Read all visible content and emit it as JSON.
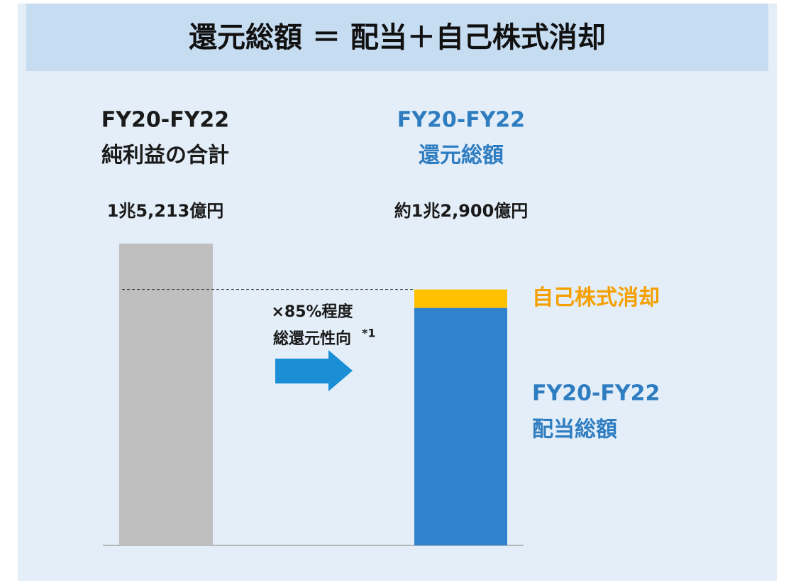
{
  "chart_data": {
    "type": "bar",
    "title": "還元総額 ＝ 配当＋自己株式消却",
    "ylim": [
      0,
      16000
    ],
    "bars": [
      {
        "label": [
          "FY20-FY22",
          "純利益の合計"
        ],
        "value": 15213,
        "value_label": "1兆5,213億円",
        "color": "#bfbfbf",
        "label_color": "#1a1a1a"
      },
      {
        "label": [
          "FY20-FY22",
          "還元総額"
        ],
        "value": 12900,
        "value_label": "約1兆2,900億円",
        "label_color": "#2f7dc1",
        "segments": [
          {
            "name": [
              "FY20-FY22",
              "配当総額"
            ],
            "value": 11970,
            "color": "#3182ce",
            "label_color": "#2f7dc1"
          },
          {
            "name": [
              "自己株式消却"
            ],
            "value": 930,
            "color": "#ffc000",
            "label_color": "#f5a000"
          }
        ]
      }
    ],
    "annotation": {
      "lines": [
        "×85%程度",
        "総還元性向"
      ],
      "note": "*1",
      "arrow_color": "#1a8fd6"
    }
  }
}
